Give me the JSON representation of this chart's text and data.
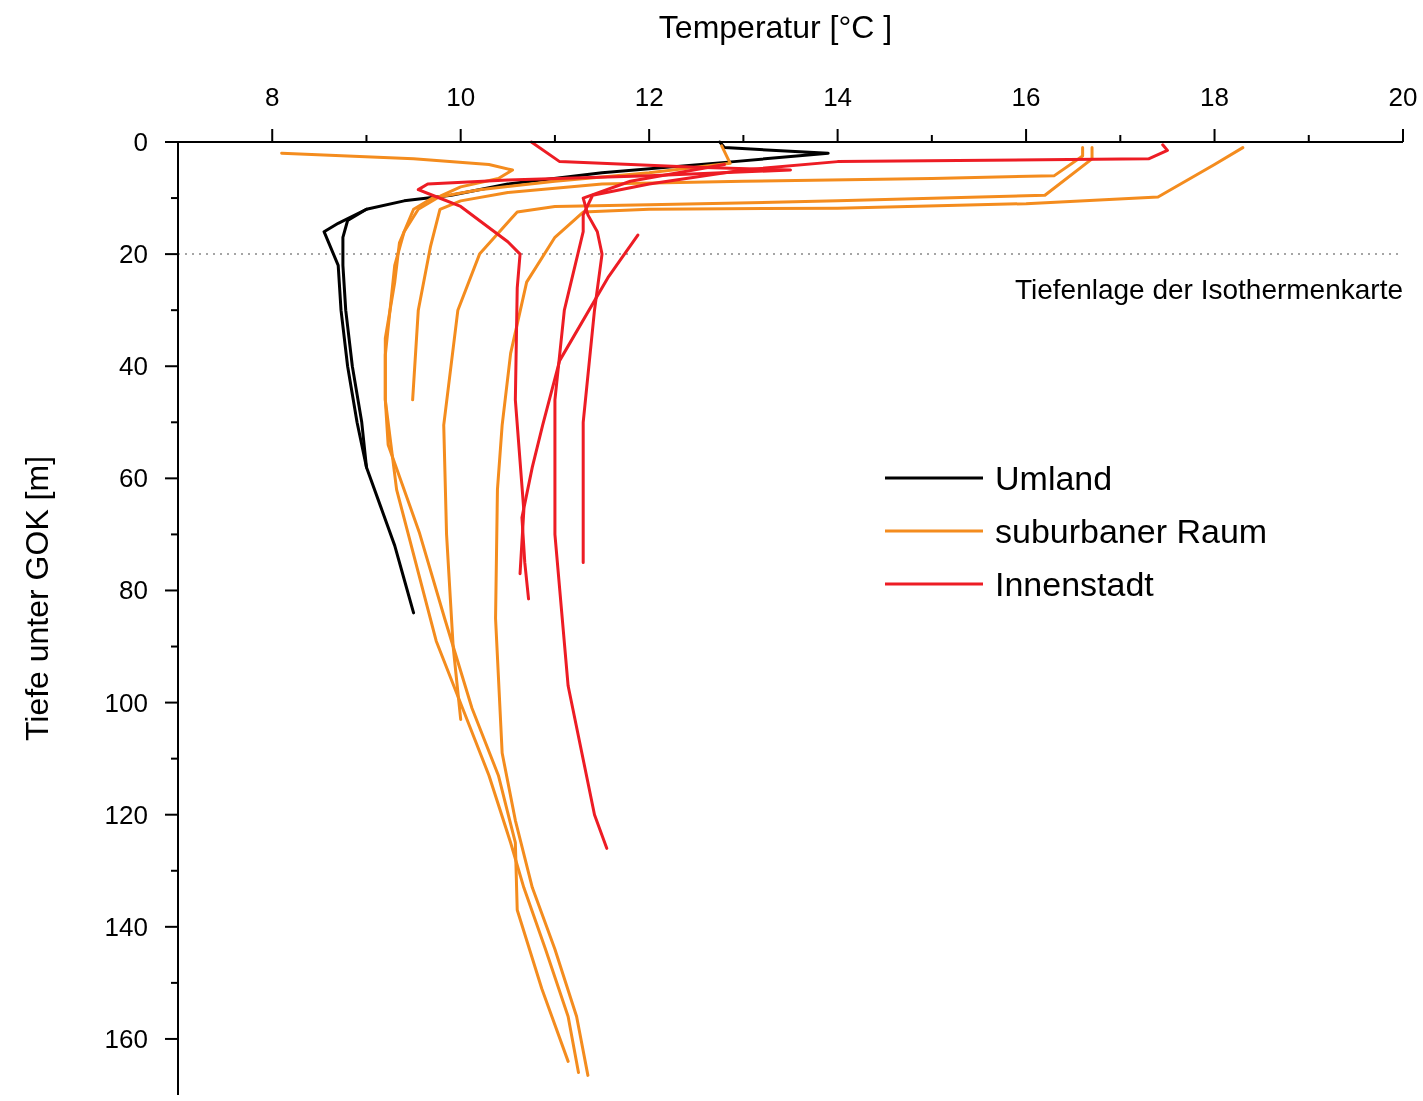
{
  "chart_data": {
    "type": "line",
    "xlabel": "Temperatur [°C ]",
    "ylabel": "Tiefe unter GOK [m]",
    "xlim": [
      7,
      20
    ],
    "ylim": [
      170,
      0
    ],
    "xticks": [
      8,
      {
        "value": 9,
        "label": null
      },
      10,
      {
        "value": 11,
        "label": null
      },
      12,
      {
        "value": 13,
        "label": null
      },
      14,
      {
        "value": 15,
        "label": null
      },
      16,
      {
        "value": 17,
        "label": null
      },
      18,
      {
        "value": 19,
        "label": null
      },
      20
    ],
    "yticks": [
      0,
      {
        "value": 10,
        "label": null
      },
      20,
      {
        "value": 30,
        "label": null
      },
      40,
      {
        "value": 50,
        "label": null
      },
      60,
      {
        "value": 70,
        "label": null
      },
      80,
      {
        "value": 90,
        "label": null
      },
      100,
      {
        "value": 110,
        "label": null
      },
      120,
      {
        "value": 130,
        "label": null
      },
      140,
      {
        "value": 150,
        "label": null
      },
      160
    ],
    "legend": "right",
    "grid": false,
    "line_style": "solid",
    "marker": "none",
    "ref_lines": [
      {
        "axis": "y",
        "value": 20,
        "label": "Tiefenlage der Isothermenkarte",
        "color": "#888888",
        "line_style": "dotted"
      }
    ],
    "series": [
      {
        "name": "Umland",
        "color": "#000000",
        "x": [
          12.75,
          12.8,
          13.9,
          12.9,
          11.5,
          10.5,
          9.9,
          9.4,
          9.0,
          8.8,
          8.75,
          8.75,
          8.78,
          8.85,
          8.95,
          9.0,
          9.15,
          9.3,
          9.4,
          9.5
        ],
        "values": [
          0,
          1,
          2,
          3.5,
          5.5,
          7.5,
          9.5,
          10.5,
          12,
          14,
          17,
          22,
          30,
          40,
          50,
          58,
          65,
          72,
          78,
          84
        ]
      },
      {
        "color": "#000000",
        "x": [
          9.0,
          8.7,
          8.55,
          8.6,
          8.7,
          8.73,
          8.8,
          8.9,
          9.0
        ],
        "values": [
          12,
          14.5,
          16,
          18,
          22,
          30,
          40,
          50,
          58
        ]
      },
      {
        "name": "suburbaner Raum",
        "color": "#f48c1e",
        "x": [
          8.1,
          9.5,
          10.3,
          10.55,
          10.4,
          10.0,
          9.8,
          9.55,
          9.4,
          9.3,
          9.25,
          9.2,
          9.2,
          9.32,
          9.74,
          10.02,
          10.3,
          10.53,
          10.67,
          10.9,
          11.14,
          11.25
        ],
        "values": [
          2,
          3,
          4,
          5,
          6.5,
          8,
          9.5,
          12,
          16,
          22,
          30,
          38,
          46,
          62,
          89,
          101,
          113,
          125,
          133,
          144,
          156,
          166
        ]
      },
      {
        "color": "#f48c1e",
        "x": [
          12.77,
          12.86,
          12.0,
          11.0,
          10.2,
          9.7,
          9.5,
          9.35,
          9.3,
          9.2,
          9.2,
          9.23,
          9.56,
          9.83,
          10.12,
          10.4,
          10.58,
          10.6,
          10.86,
          11.14
        ],
        "values": [
          0.7,
          3.8,
          5.5,
          7,
          8.5,
          10,
          12,
          18,
          25,
          35,
          46,
          54,
          69.6,
          85,
          101,
          113,
          125,
          137,
          151,
          164
        ]
      },
      {
        "color": "#f48c1e",
        "x": [
          16.6,
          16.6,
          16.3,
          15,
          13,
          11.5,
          10.5,
          10.0,
          9.78,
          9.68,
          9.55,
          9.49
        ],
        "values": [
          1,
          2.5,
          6,
          6.5,
          7,
          7.5,
          9,
          10.5,
          12,
          18.6,
          30,
          46
        ]
      },
      {
        "color": "#f48c1e",
        "x": [
          16.7,
          16.7,
          16.2,
          14,
          12,
          11.0,
          10.6,
          10.53,
          10.2,
          9.97,
          9.82,
          9.85,
          9.92,
          10.0
        ],
        "values": [
          1,
          3,
          9.5,
          10.5,
          11.2,
          11.5,
          12.5,
          13.8,
          20,
          30,
          50.5,
          70,
          90,
          103
        ]
      },
      {
        "color": "#f48c1e",
        "x": [
          18.3,
          18.0,
          17.4,
          16,
          14,
          12,
          11.3,
          11.0,
          10.7,
          10.53,
          10.44,
          10.39,
          10.37,
          10.44,
          10.58,
          10.76,
          11.0,
          11.23,
          11.35
        ],
        "values": [
          1,
          4,
          9.8,
          11,
          11.8,
          12,
          12.5,
          17,
          25,
          37.7,
          50.5,
          62,
          85,
          109,
          121,
          133,
          144,
          156,
          166.5
        ]
      },
      {
        "name": "Innenstadt",
        "color": "#ed1c24",
        "x": [
          17.45,
          17.5,
          17.3,
          14,
          13,
          12,
          11.4,
          11.3,
          11.3,
          11.1,
          11.0,
          11.0,
          11.14,
          11.42,
          11.55
        ],
        "values": [
          0.5,
          1.5,
          3,
          3.5,
          5,
          7.5,
          9.5,
          13,
          16,
          30,
          46,
          70,
          97,
          120,
          126
        ]
      },
      {
        "color": "#ed1c24",
        "x": [
          12.8,
          11.8,
          11.3,
          11.35,
          11.45,
          11.5,
          11.42,
          11.3,
          11.3
        ],
        "values": [
          4,
          7,
          10,
          13,
          16,
          20,
          30,
          50,
          75
        ]
      },
      {
        "color": "#ed1c24",
        "x": [
          11.88,
          11.57,
          11.05,
          10.87,
          10.76,
          10.65,
          10.68,
          10.72
        ],
        "values": [
          16.6,
          24,
          39,
          50.5,
          58,
          67,
          75,
          81.5
        ]
      },
      {
        "color": "#ed1c24",
        "x": [
          10.75,
          11.05,
          12.5,
          13.5,
          12,
          10.5,
          9.65,
          9.55,
          9.7,
          10.0,
          10.5,
          10.63,
          10.6,
          10.58,
          10.67,
          10.63
        ],
        "values": [
          0,
          3.5,
          4.5,
          5,
          6,
          6.8,
          7.5,
          8.5,
          9.5,
          11.5,
          17.8,
          20,
          26,
          46,
          65.7,
          77
        ]
      }
    ]
  }
}
